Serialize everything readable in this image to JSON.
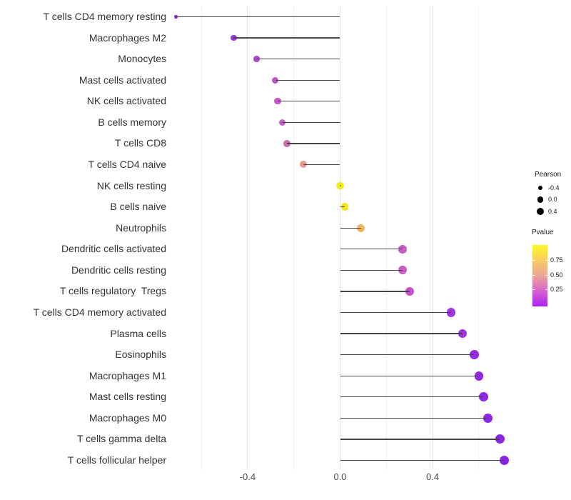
{
  "chart_data": {
    "type": "lollipop",
    "title": "",
    "xlabel": "",
    "ylabel": "",
    "x_axis": {
      "tick_labels": [
        "-0.4",
        "0.0",
        "0.4"
      ],
      "tick_values": [
        -0.4,
        0.0,
        0.4
      ],
      "minor_grid_values": [
        -0.6,
        -0.2,
        0.2,
        0.6
      ],
      "xlim": [
        -0.74,
        0.75
      ],
      "grid": "vertical light gray, no axis line, no tick marks"
    },
    "rows": [
      {
        "label": "T cells CD4 memory resting",
        "pearson": -0.71,
        "color": "#8826df",
        "radius": 2.2
      },
      {
        "label": "Macrophages M2",
        "pearson": -0.46,
        "color": "#9b37d8",
        "radius": 4.2
      },
      {
        "label": "Monocytes",
        "pearson": -0.36,
        "color": "#a846cf",
        "radius": 4.4
      },
      {
        "label": "Mast cells activated",
        "pearson": -0.28,
        "color": "#bf55c5",
        "radius": 4.6
      },
      {
        "label": "NK cells activated",
        "pearson": -0.27,
        "color": "#c057c3",
        "radius": 4.6
      },
      {
        "label": "B cells memory",
        "pearson": -0.25,
        "color": "#c463bb",
        "radius": 4.7
      },
      {
        "label": "T cells CD8",
        "pearson": -0.23,
        "color": "#c96fb0",
        "radius": 4.8
      },
      {
        "label": "T cells CD4 naive",
        "pearson": -0.16,
        "color": "#e79a8e",
        "radius": 5.0
      },
      {
        "label": "NK cells resting",
        "pearson": 0.0,
        "color": "#f7ec20",
        "radius": 5.3
      },
      {
        "label": "B cells naive",
        "pearson": 0.02,
        "color": "#f9e414",
        "radius": 5.4
      },
      {
        "label": "Neutrophils",
        "pearson": 0.09,
        "color": "#eeb45f",
        "radius": 5.7
      },
      {
        "label": "Dendritic cells activated",
        "pearson": 0.27,
        "color": "#c75cc2",
        "radius": 5.9
      },
      {
        "label": "Dendritic cells resting",
        "pearson": 0.27,
        "color": "#c75cc2",
        "radius": 5.9
      },
      {
        "label": "T cells regulatory  Tregs",
        "pearson": 0.3,
        "color": "#c24fcb",
        "radius": 6.0
      },
      {
        "label": "T cells CD4 memory activated",
        "pearson": 0.48,
        "color": "#a135e0",
        "radius": 6.1
      },
      {
        "label": "Plasma cells",
        "pearson": 0.53,
        "color": "#9c32e2",
        "radius": 6.2
      },
      {
        "label": "Eosinophils",
        "pearson": 0.58,
        "color": "#952ce4",
        "radius": 6.3
      },
      {
        "label": "Macrophages M1",
        "pearson": 0.6,
        "color": "#912ae5",
        "radius": 6.3
      },
      {
        "label": "Mast cells resting",
        "pearson": 0.62,
        "color": "#8f28e6",
        "radius": 6.4
      },
      {
        "label": "Macrophages M0",
        "pearson": 0.64,
        "color": "#8d26e7",
        "radius": 6.4
      },
      {
        "label": "T cells gamma delta",
        "pearson": 0.69,
        "color": "#8b23e8",
        "radius": 6.5
      },
      {
        "label": "T cells follicular helper",
        "pearson": 0.71,
        "color": "#8a21e9",
        "radius": 6.6
      }
    ],
    "legend": {
      "position": "right",
      "pearson": {
        "title": "Pearson",
        "dot_color": "#000000",
        "items": [
          {
            "label": "-0.4",
            "radius": 3.4
          },
          {
            "label": "0.0",
            "radius": 4.3
          },
          {
            "label": "0.4",
            "radius": 5.0
          }
        ]
      },
      "pvalue": {
        "title": "Pvalue",
        "tick_labels": [
          "0.75",
          "0.50",
          "0.25"
        ],
        "tick_values": [
          0.75,
          0.5,
          0.25
        ],
        "gradient_top_to_bottom": [
          "#fcf926",
          "#f9cb61",
          "#eba698",
          "#d563ce",
          "#ac22f2"
        ]
      }
    }
  }
}
